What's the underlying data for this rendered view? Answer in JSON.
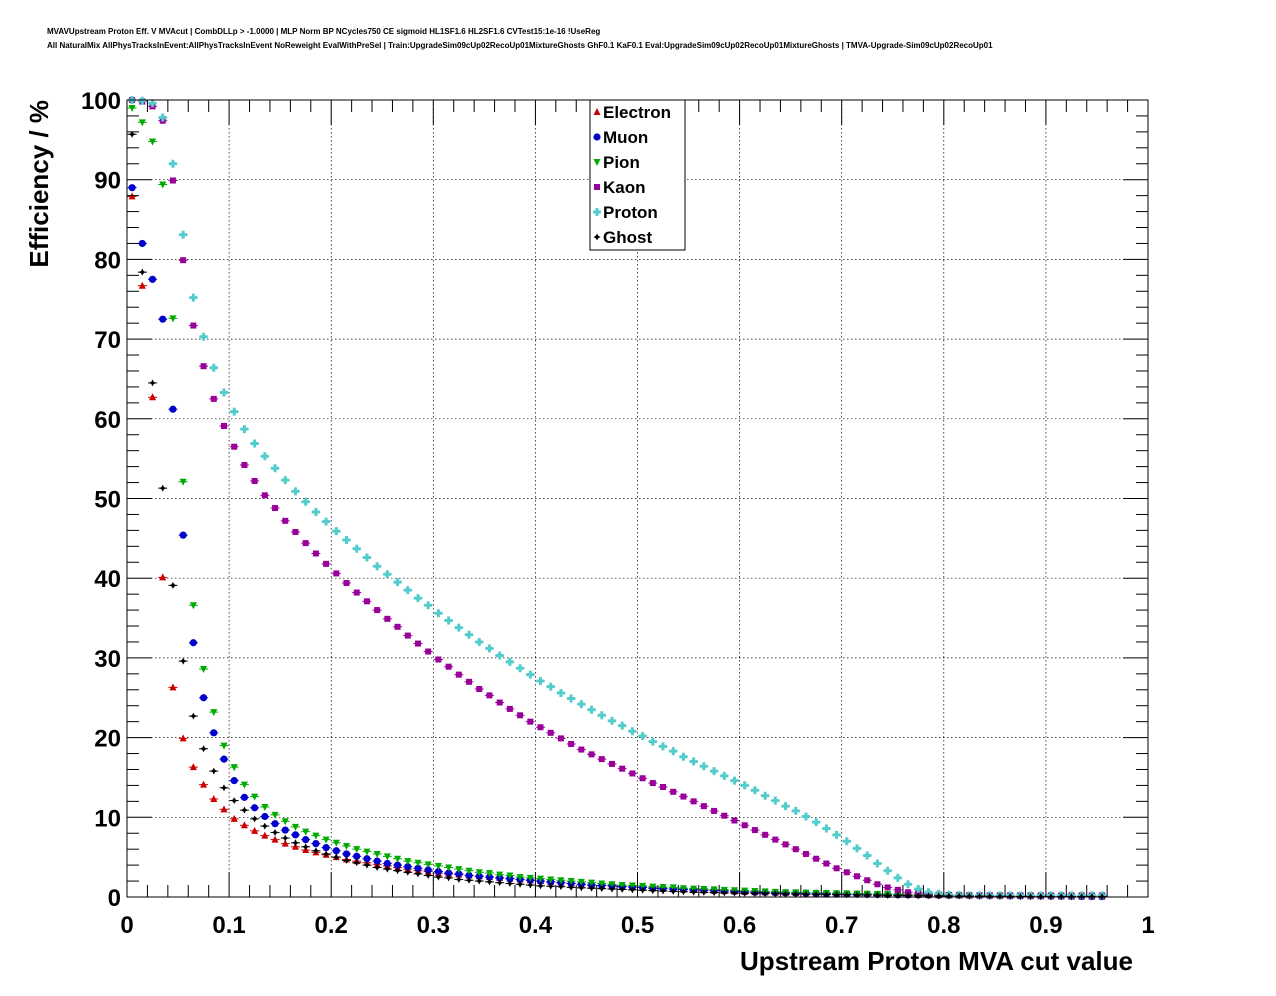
{
  "title_lines": [
    "MVAVUpstream Proton Eff. V MVAcut | CombDLLp > -1.0000 | MLP Norm BP NCycles750 CE sigmoid HL1SF1.6 HL2SF1.6 CVTest15:1e-16 !UseReg",
    "All NaturalMix AllPhysTracksInEvent:AllPhysTracksInEvent NoReweight EvalWithPreSel | Train:UpgradeSim09cUp02RecoUp01MixtureGhosts GhF0.1 KaF0.1 Eval:UpgradeSim09cUp02RecoUp01MixtureGhosts | TMVA-Upgrade-Sim09cUp02RecoUp01"
  ],
  "chart_data": {
    "type": "scatter",
    "xlabel": "Upstream Proton MVA cut value",
    "ylabel": "Efficiency / %",
    "xlim": [
      0,
      1
    ],
    "ylim": [
      0,
      100
    ],
    "x_ticks": [
      "0",
      "0.1",
      "0.2",
      "0.3",
      "0.4",
      "0.5",
      "0.6",
      "0.7",
      "0.8",
      "0.9",
      "1"
    ],
    "y_ticks": [
      "0",
      "10",
      "20",
      "30",
      "40",
      "50",
      "60",
      "70",
      "80",
      "90",
      "100"
    ],
    "grid": true,
    "legend_position": "top-center",
    "x": [
      0.005,
      0.015,
      0.025,
      0.035,
      0.045,
      0.055,
      0.065,
      0.075,
      0.085,
      0.095,
      0.105,
      0.115,
      0.125,
      0.135,
      0.145,
      0.155,
      0.165,
      0.175,
      0.185,
      0.195,
      0.205,
      0.215,
      0.225,
      0.235,
      0.245,
      0.255,
      0.265,
      0.275,
      0.285,
      0.295,
      0.305,
      0.315,
      0.325,
      0.335,
      0.345,
      0.355,
      0.365,
      0.375,
      0.385,
      0.395,
      0.405,
      0.415,
      0.425,
      0.435,
      0.445,
      0.455,
      0.465,
      0.475,
      0.485,
      0.495,
      0.505,
      0.515,
      0.525,
      0.535,
      0.545,
      0.555,
      0.565,
      0.575,
      0.585,
      0.595,
      0.605,
      0.615,
      0.625,
      0.635,
      0.645,
      0.655,
      0.665,
      0.675,
      0.685,
      0.695,
      0.705,
      0.715,
      0.725,
      0.735,
      0.745,
      0.755,
      0.765,
      0.775,
      0.785,
      0.795,
      0.805,
      0.815,
      0.825,
      0.835,
      0.845,
      0.855,
      0.865,
      0.875,
      0.885,
      0.895,
      0.905,
      0.915,
      0.925,
      0.935,
      0.945,
      0.955
    ],
    "series": [
      {
        "name": "Electron",
        "color": "#cc0000",
        "marker": "triangle-up",
        "values": [
          87.9,
          76.7,
          62.7,
          40.1,
          26.3,
          19.9,
          16.3,
          14.1,
          12.3,
          11.0,
          9.8,
          9.0,
          8.3,
          7.7,
          7.2,
          6.7,
          6.3,
          5.9,
          5.6,
          5.3,
          5.0,
          4.7,
          4.5,
          4.3,
          4.1,
          3.9,
          3.7,
          3.5,
          3.3,
          3.2,
          3.0,
          2.9,
          2.8,
          2.7,
          2.6,
          2.5,
          2.4,
          2.3,
          2.2,
          2.1,
          2.0,
          1.9,
          1.8,
          1.7,
          1.6,
          1.5,
          1.45,
          1.4,
          1.3,
          1.25,
          1.2,
          1.1,
          1.05,
          1.0,
          0.95,
          0.9,
          0.85,
          0.8,
          0.75,
          0.7,
          0.65,
          0.6,
          0.58,
          0.55,
          0.52,
          0.5,
          0.47,
          0.45,
          0.42,
          0.4,
          0.38,
          0.36,
          0.34,
          0.32,
          0.3,
          0.28,
          0.27,
          0.25,
          0.24,
          0.22,
          0.2,
          0.19,
          0.18,
          0.17,
          0.15,
          0.14,
          0.13,
          0.12,
          0.11,
          0.1,
          0.09,
          0.08,
          0.07,
          0.06,
          0.05,
          0.05
        ]
      },
      {
        "name": "Muon",
        "color": "#0000cc",
        "marker": "circle",
        "values": [
          89.0,
          82.0,
          77.5,
          72.5,
          61.2,
          45.4,
          31.9,
          25.0,
          20.6,
          17.3,
          14.6,
          12.5,
          11.2,
          10.1,
          9.2,
          8.4,
          7.8,
          7.2,
          6.7,
          6.2,
          5.8,
          5.4,
          5.1,
          4.8,
          4.5,
          4.2,
          4.0,
          3.8,
          3.6,
          3.4,
          3.2,
          3.0,
          2.9,
          2.7,
          2.6,
          2.5,
          2.4,
          2.3,
          2.2,
          2.1,
          2.0,
          1.9,
          1.8,
          1.7,
          1.6,
          1.5,
          1.45,
          1.4,
          1.3,
          1.25,
          1.2,
          1.1,
          1.05,
          1.0,
          0.95,
          0.9,
          0.85,
          0.8,
          0.75,
          0.7,
          0.65,
          0.6,
          0.58,
          0.55,
          0.52,
          0.5,
          0.47,
          0.45,
          0.42,
          0.4,
          0.38,
          0.36,
          0.34,
          0.32,
          0.3,
          0.28,
          0.27,
          0.25,
          0.24,
          0.22,
          0.2,
          0.19,
          0.18,
          0.17,
          0.15,
          0.14,
          0.13,
          0.12,
          0.11,
          0.1,
          0.09,
          0.08,
          0.07,
          0.06,
          0.05,
          0.05
        ]
      },
      {
        "name": "Pion",
        "color": "#00aa00",
        "marker": "triangle-down",
        "values": [
          99.0,
          97.2,
          94.8,
          89.4,
          72.6,
          52.1,
          36.6,
          28.6,
          23.2,
          19.0,
          16.3,
          14.1,
          12.6,
          11.3,
          10.3,
          9.5,
          8.8,
          8.2,
          7.7,
          7.2,
          6.8,
          6.4,
          6.0,
          5.7,
          5.4,
          5.1,
          4.8,
          4.5,
          4.3,
          4.1,
          3.9,
          3.7,
          3.5,
          3.3,
          3.1,
          3.0,
          2.8,
          2.7,
          2.5,
          2.4,
          2.3,
          2.2,
          2.1,
          2.0,
          1.9,
          1.8,
          1.7,
          1.6,
          1.5,
          1.45,
          1.4,
          1.3,
          1.25,
          1.2,
          1.1,
          1.05,
          1.0,
          0.95,
          0.9,
          0.85,
          0.8,
          0.75,
          0.7,
          0.65,
          0.6,
          0.58,
          0.55,
          0.52,
          0.5,
          0.47,
          0.45,
          0.42,
          0.4,
          0.38,
          0.36,
          0.34,
          0.32,
          0.3,
          0.28,
          0.27,
          0.25,
          0.24,
          0.22,
          0.2,
          0.19,
          0.18,
          0.17,
          0.15,
          0.14,
          0.13,
          0.12,
          0.11,
          0.1,
          0.09,
          0.08,
          0.07
        ]
      },
      {
        "name": "Kaon",
        "color": "#990099",
        "marker": "square",
        "values": [
          100.0,
          99.8,
          99.2,
          97.4,
          89.9,
          79.9,
          71.7,
          66.6,
          62.5,
          59.1,
          56.5,
          54.2,
          52.2,
          50.4,
          48.8,
          47.2,
          45.8,
          44.4,
          43.1,
          41.8,
          40.6,
          39.4,
          38.2,
          37.1,
          36.0,
          34.9,
          33.9,
          32.8,
          31.8,
          30.8,
          29.8,
          28.9,
          27.9,
          27.0,
          26.1,
          25.3,
          24.4,
          23.6,
          22.8,
          22.0,
          21.3,
          20.6,
          19.9,
          19.2,
          18.5,
          17.9,
          17.3,
          16.7,
          16.1,
          15.5,
          14.9,
          14.3,
          13.8,
          13.2,
          12.6,
          12.0,
          11.4,
          10.8,
          10.2,
          9.6,
          9.0,
          8.4,
          7.8,
          7.2,
          6.6,
          6.0,
          5.4,
          4.8,
          4.2,
          3.6,
          3.1,
          2.6,
          2.1,
          1.6,
          1.2,
          0.9,
          0.6,
          0.5,
          0.4,
          0.3,
          0.25,
          0.2,
          0.2,
          0.2,
          0.2,
          0.2,
          0.2,
          0.2,
          0.2,
          0.2,
          0.2,
          0.2,
          0.2,
          0.2,
          0.2,
          0.2
        ]
      },
      {
        "name": "Proton",
        "color": "#55cccc",
        "marker": "cross",
        "values": [
          100.0,
          99.9,
          99.6,
          97.8,
          92.0,
          83.1,
          75.2,
          70.3,
          66.4,
          63.3,
          60.9,
          58.7,
          56.9,
          55.3,
          53.8,
          52.3,
          50.9,
          49.6,
          48.3,
          47.1,
          45.9,
          44.8,
          43.7,
          42.6,
          41.5,
          40.5,
          39.5,
          38.5,
          37.5,
          36.6,
          35.6,
          34.7,
          33.8,
          32.9,
          32.0,
          31.2,
          30.3,
          29.5,
          28.7,
          27.9,
          27.1,
          26.4,
          25.6,
          24.9,
          24.2,
          23.5,
          22.8,
          22.1,
          21.5,
          20.8,
          20.2,
          19.5,
          18.9,
          18.3,
          17.6,
          17.0,
          16.4,
          15.8,
          15.2,
          14.6,
          14.0,
          13.4,
          12.7,
          12.1,
          11.4,
          10.8,
          10.1,
          9.4,
          8.6,
          7.8,
          7.0,
          6.1,
          5.2,
          4.2,
          3.3,
          2.4,
          1.6,
          1.0,
          0.6,
          0.4,
          0.3,
          0.25,
          0.2,
          0.2,
          0.2,
          0.2,
          0.2,
          0.2,
          0.2,
          0.2,
          0.2,
          0.2,
          0.2,
          0.2,
          0.2,
          0.2
        ]
      },
      {
        "name": "Ghost",
        "color": "#000000",
        "marker": "star",
        "values": [
          95.7,
          78.4,
          64.5,
          51.3,
          39.1,
          29.6,
          22.7,
          18.6,
          15.8,
          13.7,
          12.1,
          10.9,
          9.8,
          8.9,
          8.1,
          7.4,
          6.8,
          6.3,
          5.8,
          5.4,
          5.0,
          4.6,
          4.3,
          4.0,
          3.7,
          3.5,
          3.3,
          3.1,
          2.9,
          2.7,
          2.5,
          2.4,
          2.2,
          2.1,
          2.0,
          1.9,
          1.8,
          1.7,
          1.6,
          1.5,
          1.4,
          1.35,
          1.3,
          1.2,
          1.15,
          1.1,
          1.05,
          1.0,
          0.95,
          0.9,
          0.85,
          0.8,
          0.75,
          0.7,
          0.65,
          0.6,
          0.58,
          0.55,
          0.52,
          0.5,
          0.47,
          0.45,
          0.42,
          0.4,
          0.38,
          0.36,
          0.34,
          0.32,
          0.3,
          0.28,
          0.27,
          0.25,
          0.24,
          0.22,
          0.2,
          0.19,
          0.18,
          0.17,
          0.15,
          0.14,
          0.13,
          0.12,
          0.11,
          0.1,
          0.09,
          0.08,
          0.07,
          0.06,
          0.05,
          0.05,
          0.05,
          0.05,
          0.05,
          0.05,
          0.05,
          0.05
        ]
      }
    ]
  }
}
